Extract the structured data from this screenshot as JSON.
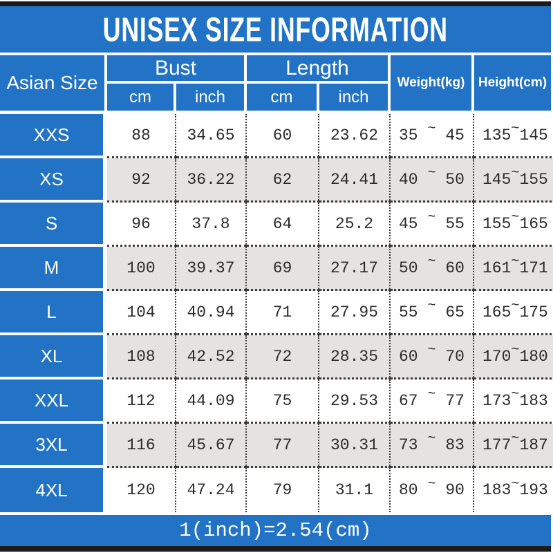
{
  "title": "UNISEX SIZE INFORMATION",
  "footer_note": "1(inch)=2.54(cm)",
  "tilde": "~",
  "colors": {
    "primary_blue": "#2273C6",
    "alt_row_gray": "#E4E3E1",
    "border_black": "#1B1B1B",
    "data_text": "#2B2B2B",
    "header_text": "#FFFFFF"
  },
  "table": {
    "header": {
      "asian_size": "Asian Size",
      "bust": "Bust",
      "length": "Length",
      "cm": "cm",
      "inch": "inch",
      "weight": "Weight(kg)",
      "height": "Height(cm)"
    },
    "rows": [
      {
        "size": "XXS",
        "bust_cm": "88",
        "bust_inch": "34.65",
        "length_cm": "60",
        "length_inch": "23.62",
        "weight_min": "35",
        "weight_max": "45",
        "height_min": "135",
        "height_max": "145"
      },
      {
        "size": "XS",
        "bust_cm": "92",
        "bust_inch": "36.22",
        "length_cm": "62",
        "length_inch": "24.41",
        "weight_min": "40",
        "weight_max": "50",
        "height_min": "145",
        "height_max": "155"
      },
      {
        "size": "S",
        "bust_cm": "96",
        "bust_inch": "37.8",
        "length_cm": "64",
        "length_inch": "25.2",
        "weight_min": "45",
        "weight_max": "55",
        "height_min": "155",
        "height_max": "165"
      },
      {
        "size": "M",
        "bust_cm": "100",
        "bust_inch": "39.37",
        "length_cm": "69",
        "length_inch": "27.17",
        "weight_min": "50",
        "weight_max": "60",
        "height_min": "161",
        "height_max": "171"
      },
      {
        "size": "L",
        "bust_cm": "104",
        "bust_inch": "40.94",
        "length_cm": "71",
        "length_inch": "27.95",
        "weight_min": "55",
        "weight_max": "65",
        "height_min": "165",
        "height_max": "175"
      },
      {
        "size": "XL",
        "bust_cm": "108",
        "bust_inch": "42.52",
        "length_cm": "72",
        "length_inch": "28.35",
        "weight_min": "60",
        "weight_max": "70",
        "height_min": "170",
        "height_max": "180"
      },
      {
        "size": "XXL",
        "bust_cm": "112",
        "bust_inch": "44.09",
        "length_cm": "75",
        "length_inch": "29.53",
        "weight_min": "67",
        "weight_max": "77",
        "height_min": "173",
        "height_max": "183"
      },
      {
        "size": "3XL",
        "bust_cm": "116",
        "bust_inch": "45.67",
        "length_cm": "77",
        "length_inch": "30.31",
        "weight_min": "73",
        "weight_max": "83",
        "height_min": "177",
        "height_max": "187"
      },
      {
        "size": "4XL",
        "bust_cm": "120",
        "bust_inch": "47.24",
        "length_cm": "79",
        "length_inch": "31.1",
        "weight_min": "80",
        "weight_max": "90",
        "height_min": "183",
        "height_max": "193"
      }
    ]
  }
}
